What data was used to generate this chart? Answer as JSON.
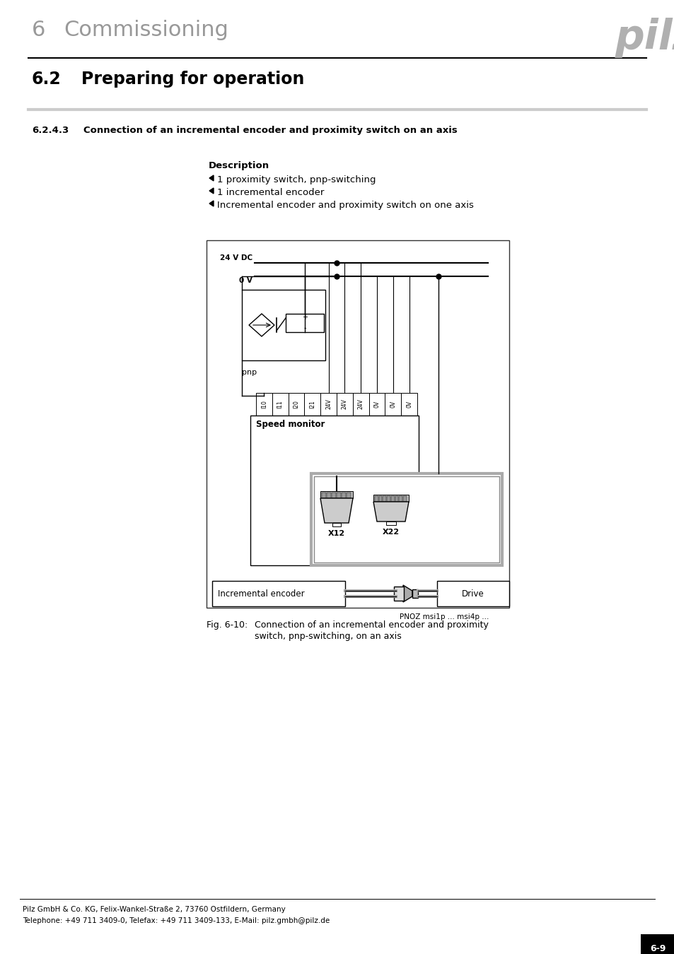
{
  "page_title_number": "6",
  "page_title_text": "Commissioning",
  "section_number": "6.2",
  "section_title": "Preparing for operation",
  "subsection": "6.2.4.3",
  "subsection_title": "Connection of an incremental encoder and proximity switch on an axis",
  "description_title": "Description",
  "description_items": [
    "1 proximity switch, pnp-switching",
    "1 incremental encoder",
    "Incremental encoder and proximity switch on one axis"
  ],
  "fig_label": "Fig. 6-10:",
  "fig_caption_line1": "Connection of an incremental encoder and proximity",
  "fig_caption_line2": "switch, pnp-switching, on an axis",
  "footer_line1": "Pilz GmbH & Co. KG, Felix-Wankel-Straße 2, 73760 Ostfildern, Germany",
  "footer_line2": "Telephone: +49 711 3409-0, Telefax: +49 711 3409-133, E-Mail: pilz.gmbh@pilz.de",
  "page_number": "6-9",
  "bg_color": "#ffffff",
  "text_color": "#000000",
  "gray_color": "#999999",
  "light_gray": "#cccccc",
  "mid_gray": "#aaaaaa",
  "dark_gray": "#555555",
  "pilz_gray": "#b0b0b0",
  "connector_labels": [
    "I10",
    "I11",
    "I20",
    "I21",
    "24V",
    "24V",
    "24V",
    "0V",
    "0V",
    "0V"
  ]
}
